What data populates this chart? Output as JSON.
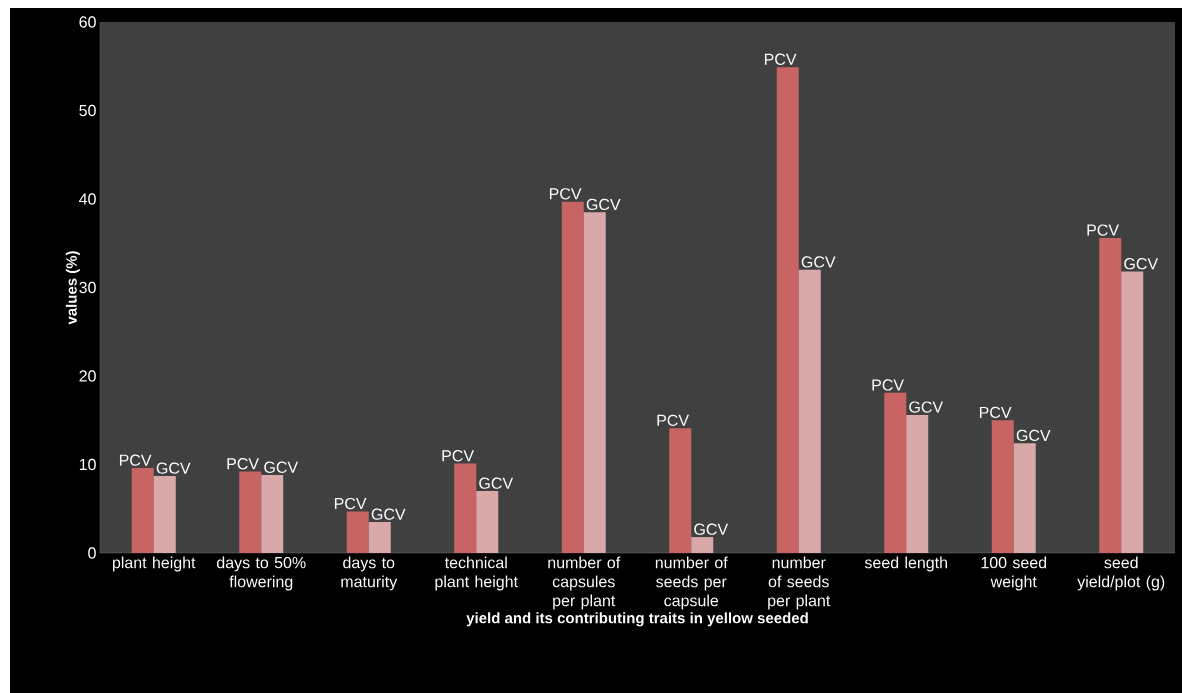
{
  "chart_data": {
    "type": "bar",
    "xlabel": "yield and its contributing traits in yellow seeded",
    "ylabel": "values (%)",
    "categories": [
      "plant height",
      "days to 50% flowering",
      "days to maturity",
      "technical plant height",
      "number of capsules per plant",
      "number of seeds per capsule",
      "number of seeds per plant",
      "seed length",
      "100 seed weight",
      "seed yield/plot (g)"
    ],
    "series": [
      {
        "name": "PCV",
        "color": "#c96464",
        "values": [
          9.6,
          9.2,
          4.7,
          10.1,
          39.7,
          14.1,
          54.9,
          18.1,
          15.0,
          35.6
        ]
      },
      {
        "name": "GCV",
        "color": "#d9a8a8",
        "values": [
          8.7,
          8.8,
          3.5,
          7.0,
          38.5,
          1.8,
          32.0,
          15.6,
          12.4,
          31.8
        ]
      }
    ],
    "ylim": [
      0,
      60
    ],
    "yticks": [
      0,
      10,
      20,
      30,
      40,
      50,
      60
    ]
  }
}
